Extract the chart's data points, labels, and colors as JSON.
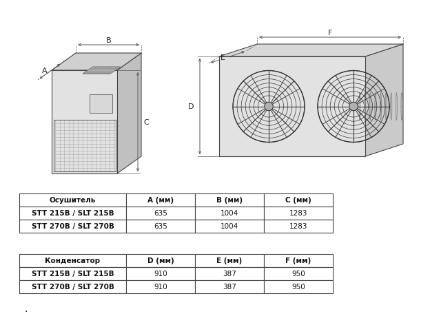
{
  "bg_color": "#ffffff",
  "table1_header": [
    "Осушитель",
    "A (мм)",
    "B (мм)",
    "C (мм)"
  ],
  "table1_rows": [
    [
      "STT 215В / SLT 215В",
      "635",
      "1004",
      "1283"
    ],
    [
      "STT 270В / SLT 270В",
      "635",
      "1004",
      "1283"
    ]
  ],
  "table2_header": [
    "Конденсатор",
    "D (мм)",
    "E (мм)",
    "F (мм)"
  ],
  "table2_rows": [
    [
      "STT 215В / SLT 215В",
      "910",
      "387",
      "950"
    ],
    [
      "STT 270В / SLT 270В",
      "910",
      "387",
      "950"
    ]
  ],
  "ec": "#444444",
  "face_front": "#e2e2e2",
  "face_top": "#d0d0d0",
  "face_side": "#c0c0c0",
  "face_top2": "#d8d8d8",
  "face_side2": "#cacaca",
  "dim_line_color": "#555555",
  "grid_color": "#aaaaaa"
}
